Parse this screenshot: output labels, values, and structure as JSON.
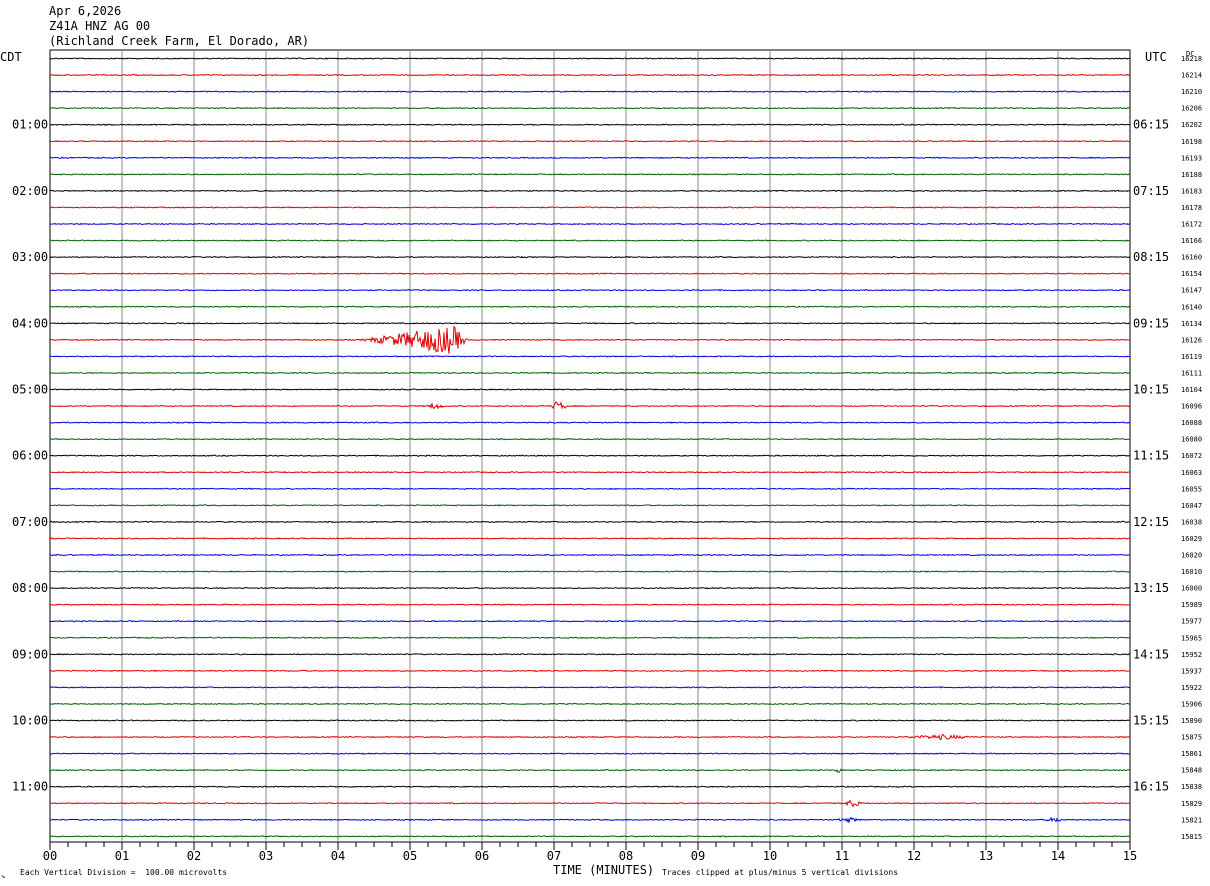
{
  "header": {
    "date": "Apr 6,2026",
    "station": "Z41A HNZ AG 00",
    "location": "(Richland Creek Farm, El Dorado, AR)"
  },
  "tz_left": "CDT",
  "tz_right": "UTC",
  "dc_label": "DC",
  "footer": {
    "left_note": "Each Vertical Division =  100.00 microvolts",
    "right_note": "Traces clipped at plus/minus 5 vertical divisions",
    "corner_mark": "↘"
  },
  "colors": {
    "trace_cycle": [
      "#000000",
      "#e00000",
      "#0000e0",
      "#006000"
    ],
    "grid": "#888888"
  },
  "chart_data": {
    "type": "line",
    "title": "",
    "xlabel": "TIME (MINUTES)",
    "ylabel": "",
    "x_ticks": [
      "00",
      "01",
      "02",
      "03",
      "04",
      "05",
      "06",
      "07",
      "08",
      "09",
      "10",
      "11",
      "12",
      "13",
      "14",
      "15"
    ],
    "xlim": [
      0,
      15
    ],
    "left_hour_labels": [
      "01:00",
      "02:00",
      "03:00",
      "04:00",
      "05:00",
      "06:00",
      "07:00",
      "08:00",
      "09:00",
      "10:00",
      "11:00"
    ],
    "right_hour_labels": [
      "06:15",
      "07:15",
      "08:15",
      "09:15",
      "10:15",
      "11:15",
      "12:15",
      "13:15",
      "14:15",
      "15:15",
      "16:15"
    ],
    "dc_values": [
      "16218",
      "16214",
      "16210",
      "16206",
      "16202",
      "16198",
      "16193",
      "16188",
      "16183",
      "16178",
      "16172",
      "16166",
      "16160",
      "16154",
      "16147",
      "16140",
      "16134",
      "16126",
      "16119",
      "16111",
      "16104",
      "16096",
      "16088",
      "16080",
      "16072",
      "16063",
      "16055",
      "16047",
      "16038",
      "16029",
      "16020",
      "16010",
      "16000",
      "15989",
      "15977",
      "15965",
      "15952",
      "15937",
      "15922",
      "15906",
      "15890",
      "15875",
      "15861",
      "15848",
      "15838",
      "15829",
      "15821",
      "15815"
    ],
    "trace_count": 48,
    "minutes_per_trace": 15,
    "events": [
      {
        "trace": 17,
        "start_min": 4.3,
        "end_min": 5.8,
        "peak_min": 5.6,
        "amplitude": 5.0
      },
      {
        "trace": 21,
        "start_min": 5.2,
        "end_min": 5.5,
        "peak_min": 5.35,
        "amplitude": 1.0
      },
      {
        "trace": 21,
        "start_min": 6.95,
        "end_min": 7.2,
        "peak_min": 7.05,
        "amplitude": 1.8
      },
      {
        "trace": 41,
        "start_min": 11.8,
        "end_min": 12.9,
        "peak_min": 12.4,
        "amplitude": 0.8
      },
      {
        "trace": 43,
        "start_min": 10.9,
        "end_min": 11.0,
        "peak_min": 10.95,
        "amplitude": 0.8
      },
      {
        "trace": 45,
        "start_min": 11.0,
        "end_min": 11.3,
        "peak_min": 11.15,
        "amplitude": 1.2
      },
      {
        "trace": 46,
        "start_min": 10.9,
        "end_min": 11.3,
        "peak_min": 11.1,
        "amplitude": 0.8
      },
      {
        "trace": 46,
        "start_min": 13.8,
        "end_min": 14.1,
        "peak_min": 13.95,
        "amplitude": 0.8
      }
    ]
  }
}
